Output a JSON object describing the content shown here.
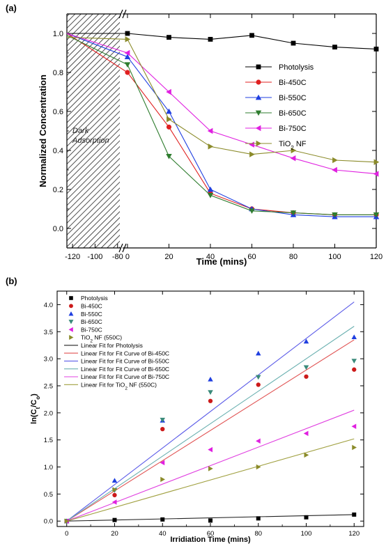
{
  "chart_data": [
    {
      "panel": "(a)",
      "type": "line",
      "ylabel": "Normalized Concentration",
      "xlabel": "Time (mins)",
      "x_ticks_left": [
        "-120",
        "-100",
        "-80"
      ],
      "x_ticks_right": [
        "0",
        "20",
        "40",
        "60",
        "80",
        "100",
        "120"
      ],
      "y_ticks": [
        "0.0",
        "0.2",
        "0.4",
        "0.6",
        "0.8",
        "1.0"
      ],
      "xlim_left": [
        -125,
        -78
      ],
      "xlim_right": [
        -2,
        120
      ],
      "ylim": [
        -0.1,
        1.1
      ],
      "shaded_region_label": [
        "Dark",
        "Adsorption"
      ],
      "legend_position": "center-right",
      "series": [
        {
          "name": "Photolysis",
          "legend": [
            "Photolysis"
          ],
          "color": "#000000",
          "marker": "square",
          "start": 1.0,
          "x": [
            0,
            20,
            40,
            60,
            80,
            100,
            120
          ],
          "y": [
            1.0,
            0.98,
            0.97,
            0.99,
            0.95,
            0.93,
            0.92
          ]
        },
        {
          "name": "Bi-450C",
          "legend": [
            "Bi-450C"
          ],
          "color": "#e02020",
          "marker": "circle",
          "start": 1.0,
          "x": [
            0,
            20,
            40,
            60,
            80,
            100,
            120
          ],
          "y": [
            0.8,
            0.52,
            0.18,
            0.1,
            0.08,
            0.07,
            0.07
          ]
        },
        {
          "name": "Bi-550C",
          "legend": [
            "Bi-550C"
          ],
          "color": "#1f3fe0",
          "marker": "triangle-up",
          "start": 1.0,
          "x": [
            0,
            20,
            40,
            60,
            80,
            100,
            120
          ],
          "y": [
            0.88,
            0.6,
            0.2,
            0.1,
            0.07,
            0.06,
            0.06
          ]
        },
        {
          "name": "Bi-650C",
          "legend": [
            "Bi-650C"
          ],
          "color": "#2f7d2f",
          "marker": "triangle-down",
          "start": 0.99,
          "x": [
            0,
            20,
            40,
            60,
            80,
            100,
            120
          ],
          "y": [
            0.84,
            0.37,
            0.17,
            0.09,
            0.08,
            0.07,
            0.07
          ]
        },
        {
          "name": "Bi-750C",
          "legend": [
            "Bi-750C"
          ],
          "color": "#e020e0",
          "marker": "triangle-left",
          "start": 1.0,
          "x": [
            0,
            20,
            40,
            60,
            80,
            100,
            120
          ],
          "y": [
            0.9,
            0.7,
            0.5,
            0.43,
            0.36,
            0.3,
            0.28
          ]
        },
        {
          "name": "TiO2 NF",
          "legend": [
            "TiO",
            "2",
            " NF"
          ],
          "color": "#8b8b2a",
          "marker": "triangle-right",
          "start": 0.98,
          "x": [
            0,
            20,
            40,
            60,
            80,
            100,
            120
          ],
          "y": [
            0.97,
            0.56,
            0.42,
            0.38,
            0.4,
            0.35,
            0.34
          ]
        }
      ]
    },
    {
      "panel": "(b)",
      "type": "scatter",
      "ylabel": "ln(Ct/Co)",
      "ylabel_parts": [
        "ln(C",
        "t",
        "/C",
        "o",
        ")"
      ],
      "xlabel": "Irridiation Time (mins)",
      "x_ticks": [
        "0",
        "20",
        "40",
        "60",
        "80",
        "100",
        "120"
      ],
      "y_ticks": [
        "0.0",
        "0.5",
        "1.0",
        "1.5",
        "2.0",
        "2.5",
        "3.0",
        "3.5",
        "4.0"
      ],
      "xlim": [
        -4,
        124
      ],
      "ylim": [
        -0.1,
        4.25
      ],
      "legend_position": "top-left",
      "series": [
        {
          "name": "Photolysis",
          "legend": [
            "Photolysis"
          ],
          "color": "#000000",
          "marker": "square",
          "x": [
            0,
            20,
            40,
            60,
            80,
            100,
            120
          ],
          "y": [
            0.0,
            0.02,
            0.03,
            0.01,
            0.05,
            0.07,
            0.12
          ]
        },
        {
          "name": "Bi-450C",
          "legend": [
            "Bi-450C"
          ],
          "color": "#cc1a1a",
          "marker": "circle",
          "x": [
            0,
            20,
            40,
            60,
            80,
            100,
            120
          ],
          "y": [
            0.0,
            0.48,
            1.7,
            2.22,
            2.52,
            2.67,
            2.8
          ]
        },
        {
          "name": "Bi-550C",
          "legend": [
            "Bi-550C"
          ],
          "color": "#1f3fe0",
          "marker": "triangle-up",
          "x": [
            0,
            20,
            40,
            60,
            80,
            100,
            120
          ],
          "y": [
            0.0,
            0.75,
            1.86,
            2.62,
            3.1,
            3.32,
            3.4
          ]
        },
        {
          "name": "Bi-650C",
          "legend": [
            "Bi-650C"
          ],
          "color": "#3a8a7a",
          "marker": "triangle-down",
          "x": [
            0,
            20,
            40,
            60,
            80,
            100,
            120
          ],
          "y": [
            0.0,
            0.57,
            1.87,
            2.38,
            2.66,
            2.84,
            2.96
          ]
        },
        {
          "name": "Bi-750C",
          "legend": [
            "Bi-750C"
          ],
          "color": "#e020e0",
          "marker": "triangle-left",
          "x": [
            0,
            20,
            40,
            60,
            80,
            100,
            120
          ],
          "y": [
            0.0,
            0.35,
            1.08,
            1.32,
            1.48,
            1.62,
            1.75
          ]
        },
        {
          "name": "TiO2 NF (550C)",
          "legend": [
            "TiO",
            "2",
            " NF (550C)"
          ],
          "color": "#8b8b2a",
          "marker": "triangle-right",
          "x": [
            0,
            20,
            40,
            60,
            80,
            100,
            120
          ],
          "y": [
            0.0,
            0.58,
            0.77,
            0.97,
            1.0,
            1.22,
            1.36
          ]
        }
      ],
      "fits": [
        {
          "name": "Linear Fit for Photolysis",
          "legend": [
            "Linear Fit for Photolysis"
          ],
          "color": "#222222",
          "y0": 0.0,
          "y120": 0.12
        },
        {
          "name": "Linear Fit for Fit Curve of Bi-450C",
          "legend": [
            "Linear Fit for Fit Curve of Bi-450C"
          ],
          "color": "#e05050",
          "y0": 0.0,
          "y120": 3.35
        },
        {
          "name": "Linear Fit for Fit Curve of Bi-550C",
          "legend": [
            "Linear Fit for Fit Curve of Bi-550C"
          ],
          "color": "#5c5ce8",
          "y0": 0.0,
          "y120": 4.05
        },
        {
          "name": "Linear Fit for Fit Curve of Bi-650C",
          "legend": [
            "Linear Fit for Fit Curve of Bi-650C"
          ],
          "color": "#6ab0b0",
          "y0": 0.0,
          "y120": 3.6
        },
        {
          "name": "Linear Fit for Fit Curve of Bi-750C",
          "legend": [
            "Linear Fit for Fit Curve of Bi-750C"
          ],
          "color": "#e040e0",
          "y0": 0.0,
          "y120": 2.05
        },
        {
          "name": "Linear Fit for TiO2 NF (550C)",
          "legend": [
            "Linear Fit for TiO",
            "2",
            " NF (550C)"
          ],
          "color": "#a0a040",
          "y0": 0.0,
          "y120": 1.52
        }
      ]
    }
  ]
}
